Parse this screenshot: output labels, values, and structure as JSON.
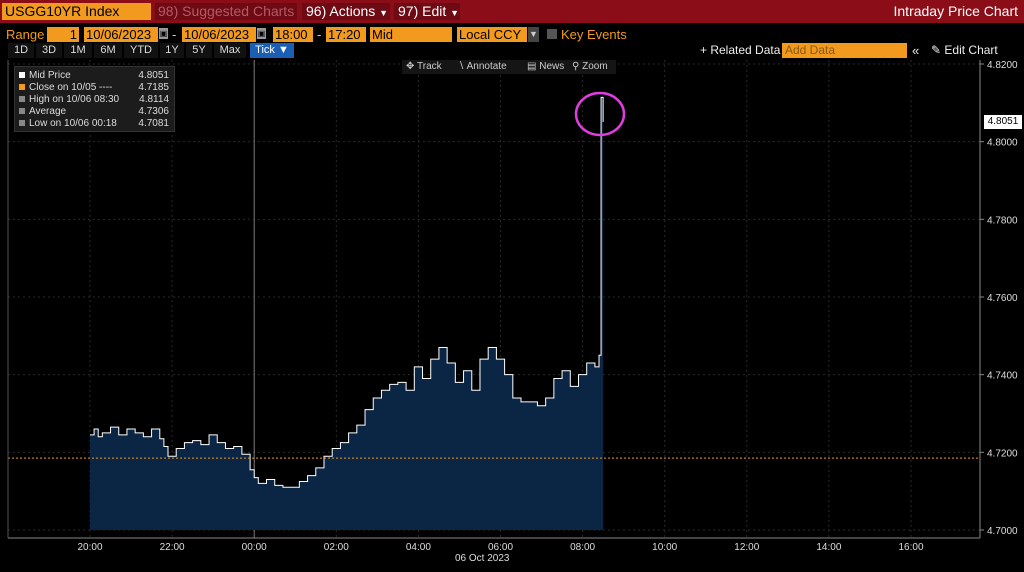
{
  "topbar": {
    "ticker": "USGG10YR Index",
    "suggested": "Suggested Charts",
    "actions": "Actions",
    "actions_num": "96)",
    "edit": "Edit",
    "edit_num": "97)",
    "suggested_num": "98)",
    "title": "Intraday Price Chart"
  },
  "range": {
    "label": "Range",
    "field": "1",
    "start_date": "10/06/2023",
    "end_date": "10/06/2023",
    "start_time": "18:00",
    "end_time": "17:20",
    "price_type": "Mid",
    "currency": "Local CCY",
    "key_events": "Key Events"
  },
  "periods": [
    "1D",
    "3D",
    "1M",
    "6M",
    "YTD",
    "1Y",
    "5Y",
    "Max",
    "Tick ▼"
  ],
  "selected_period": "Tick ▼",
  "right_controls": {
    "related": "+ Related Data",
    "add_data": "Add Data",
    "collapse": "«",
    "edit_chart": "Edit Chart"
  },
  "toolbar": {
    "track": "Track",
    "annotate": "Annotate",
    "news": "News",
    "zoom": "Zoom"
  },
  "legend": [
    {
      "label": "Mid Price",
      "value": "4.8051",
      "color": "#ffffff"
    },
    {
      "label": "Close on 10/05 ---- ",
      "value": "4.7185",
      "color": "#f29a1e"
    },
    {
      "label": "High on 10/06 08:30",
      "value": "4.8114",
      "color": "#888888"
    },
    {
      "label": "Average",
      "value": "4.7306",
      "color": "#888888"
    },
    {
      "label": "Low on 10/06 00:18",
      "value": "4.7081",
      "color": "#888888"
    }
  ],
  "current_price": "4.8051",
  "date_label": "06 Oct 2023",
  "chart_data": {
    "type": "area",
    "series": [
      {
        "name": "Mid Price",
        "color": "#ffffff",
        "fill": "#0b2545"
      }
    ],
    "x_ticks": [
      "20:00",
      "22:00",
      "00:00",
      "02:00",
      "04:00",
      "06:00",
      "08:00",
      "10:00",
      "12:00",
      "14:00",
      "16:00"
    ],
    "y_ticks": [
      "4.8200",
      "4.8000",
      "4.7800",
      "4.7600",
      "4.7400",
      "4.7200",
      "4.7000"
    ],
    "ylim": [
      4.7,
      4.82
    ],
    "close_line": 4.7185,
    "x_hours": [
      0,
      0.1,
      0.2,
      0.3,
      0.5,
      0.7,
      0.9,
      1.1,
      1.3,
      1.5,
      1.7,
      1.8,
      1.9,
      2.1,
      2.3,
      2.5,
      2.7,
      2.9,
      3.1,
      3.3,
      3.5,
      3.7,
      3.9,
      4.0,
      4.1,
      4.3,
      4.5,
      4.7,
      4.9,
      5.1,
      5.3,
      5.5,
      5.7,
      5.9,
      6.1,
      6.3,
      6.5,
      6.7,
      6.9,
      7.1,
      7.3,
      7.5,
      7.7,
      7.9,
      8.1,
      8.3,
      8.5,
      8.7,
      8.9,
      9.1,
      9.3,
      9.5,
      9.7,
      9.9,
      10.1,
      10.3,
      10.5,
      10.7,
      10.9,
      11.1,
      11.3,
      11.5,
      11.7,
      11.9,
      12.1,
      12.3,
      12.4,
      12.45,
      12.5
    ],
    "y_values": [
      4.7245,
      4.726,
      4.724,
      4.725,
      4.7265,
      4.7245,
      4.726,
      4.725,
      4.724,
      4.726,
      4.7235,
      4.7215,
      4.719,
      4.721,
      4.7225,
      4.723,
      4.722,
      4.7245,
      4.7225,
      4.721,
      4.7215,
      4.7195,
      4.7155,
      4.7135,
      4.712,
      4.713,
      4.7115,
      4.711,
      4.711,
      4.7125,
      4.714,
      4.716,
      4.719,
      4.721,
      4.7225,
      4.725,
      4.727,
      4.731,
      4.734,
      4.736,
      4.7375,
      4.738,
      4.736,
      4.742,
      4.739,
      4.744,
      4.747,
      4.743,
      4.738,
      4.741,
      4.736,
      4.744,
      4.747,
      4.744,
      4.74,
      4.734,
      4.733,
      4.733,
      4.732,
      4.734,
      4.739,
      4.741,
      4.737,
      4.74,
      4.743,
      4.742,
      4.745,
      4.8114,
      4.8051
    ]
  }
}
